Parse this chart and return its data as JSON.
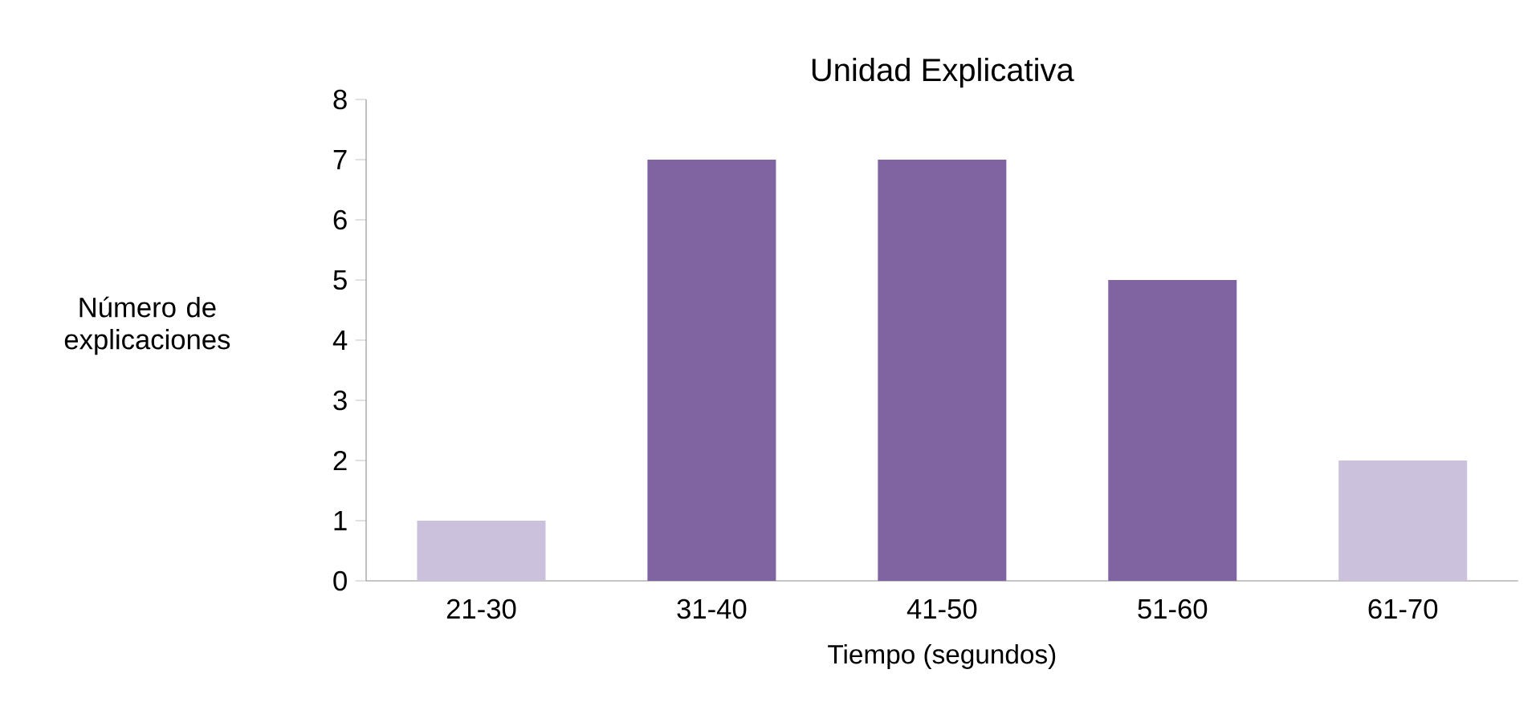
{
  "chart_data": {
    "type": "bar",
    "title": "Unidad Explicativa",
    "xlabel": "Tiempo (segundos)",
    "ylabel": "Número de explicaciones",
    "categories": [
      "21-30",
      "31-40",
      "41-50",
      "51-60",
      "61-70"
    ],
    "values": [
      1,
      7,
      7,
      5,
      2
    ],
    "colors": [
      "#cbc1dd",
      "#8064a2",
      "#8064a2",
      "#8064a2",
      "#cbc1dd"
    ],
    "ylim": [
      0,
      8
    ],
    "yticks": [
      0,
      1,
      2,
      3,
      4,
      5,
      6,
      7,
      8
    ],
    "grid": false
  }
}
